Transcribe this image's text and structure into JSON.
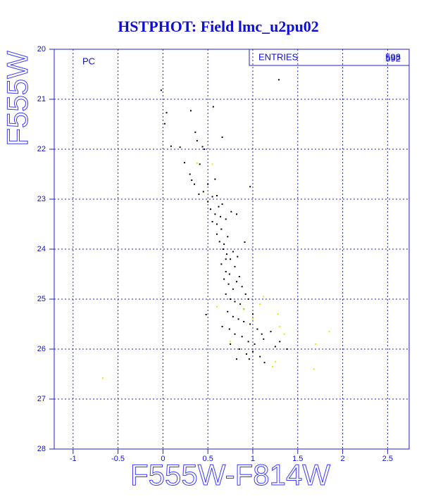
{
  "chart_data": {
    "type": "scatter",
    "title": "HSTPHOT: Field lmc_u2pu02",
    "x_label": "F555W-F814W",
    "y_label": "F555W",
    "annotation": "PC",
    "stats_label": "ENTRIES",
    "stats_values": [
      "598",
      "592"
    ],
    "xlim": [
      -1.21,
      2.74
    ],
    "ylim": [
      20,
      28
    ],
    "y_inverted": true,
    "xticks": [
      -1,
      -0.5,
      0,
      0.5,
      1,
      1.5,
      2,
      2.5
    ],
    "yticks": [
      20,
      21,
      22,
      23,
      24,
      25,
      26,
      27,
      28
    ],
    "grid": true,
    "series": [
      {
        "color": "#000000",
        "x": [
          -0.02,
          0.04,
          0.02,
          0.31,
          0.56,
          0.66,
          0.09,
          0.19,
          0.36,
          0.38,
          0.44,
          0.46,
          0.24,
          0.3,
          0.32,
          0.41,
          0.35,
          0.4,
          0.45,
          0.5,
          0.55,
          0.6,
          0.5,
          0.53,
          0.58,
          0.62,
          0.66,
          0.55,
          0.6,
          0.65,
          0.7,
          0.76,
          0.82,
          0.6,
          0.63,
          0.68,
          0.72,
          0.67,
          0.71,
          0.75,
          0.78,
          0.83,
          0.65,
          0.7,
          0.74,
          0.8,
          0.85,
          0.68,
          0.73,
          0.78,
          0.82,
          0.88,
          0.92,
          0.7,
          0.75,
          0.8,
          0.86,
          0.9,
          0.95,
          0.72,
          0.78,
          0.84,
          0.9,
          0.97,
          1.0,
          1.05,
          1.1,
          0.66,
          0.74,
          0.8,
          0.88,
          0.95,
          1.02,
          1.12,
          1.2,
          1.25,
          1.3,
          1.38,
          0.75,
          0.85,
          0.93,
          1.0,
          1.08,
          0.82,
          0.96,
          1.13,
          1.29,
          0.97,
          0.91,
          0.48,
          0.7,
          0.64,
          0.58
        ],
        "values": [
          20.82,
          21.27,
          21.49,
          21.23,
          21.15,
          21.76,
          21.94,
          21.96,
          21.66,
          21.83,
          21.95,
          22.0,
          22.27,
          22.5,
          22.62,
          22.3,
          22.7,
          22.9,
          22.85,
          22.7,
          22.95,
          22.93,
          23.05,
          23.2,
          23.3,
          23.15,
          23.1,
          23.45,
          23.5,
          23.6,
          23.4,
          23.25,
          23.3,
          23.7,
          23.85,
          23.9,
          23.75,
          24.0,
          24.1,
          24.2,
          24.05,
          24.15,
          24.3,
          24.45,
          24.5,
          24.35,
          24.55,
          24.6,
          24.7,
          24.8,
          24.65,
          24.75,
          24.9,
          24.9,
          25.0,
          25.05,
          25.1,
          25.2,
          25.0,
          25.25,
          25.35,
          25.4,
          25.45,
          25.5,
          25.3,
          25.6,
          25.7,
          25.55,
          25.6,
          25.7,
          25.75,
          25.85,
          25.9,
          25.8,
          25.65,
          25.95,
          25.85,
          26.0,
          25.9,
          26.0,
          26.1,
          26.05,
          26.15,
          26.2,
          26.2,
          26.27,
          20.61,
          22.75,
          23.86,
          25.31,
          24.2,
          23.35,
          22.6
        ]
      },
      {
        "color": "#e6e600",
        "x": [
          -0.67,
          0.38,
          0.55,
          1.12,
          1.28,
          1.3,
          1.35,
          1.85,
          1.7,
          1.68,
          1.25,
          1.22,
          0.6,
          0.9,
          0.75,
          1.0,
          1.08
        ],
        "values": [
          26.58,
          22.28,
          22.3,
          24.95,
          25.3,
          25.55,
          25.7,
          25.65,
          25.9,
          26.4,
          26.25,
          26.35,
          25.15,
          25.2,
          25.85,
          25.4,
          25.1
        ]
      }
    ]
  }
}
